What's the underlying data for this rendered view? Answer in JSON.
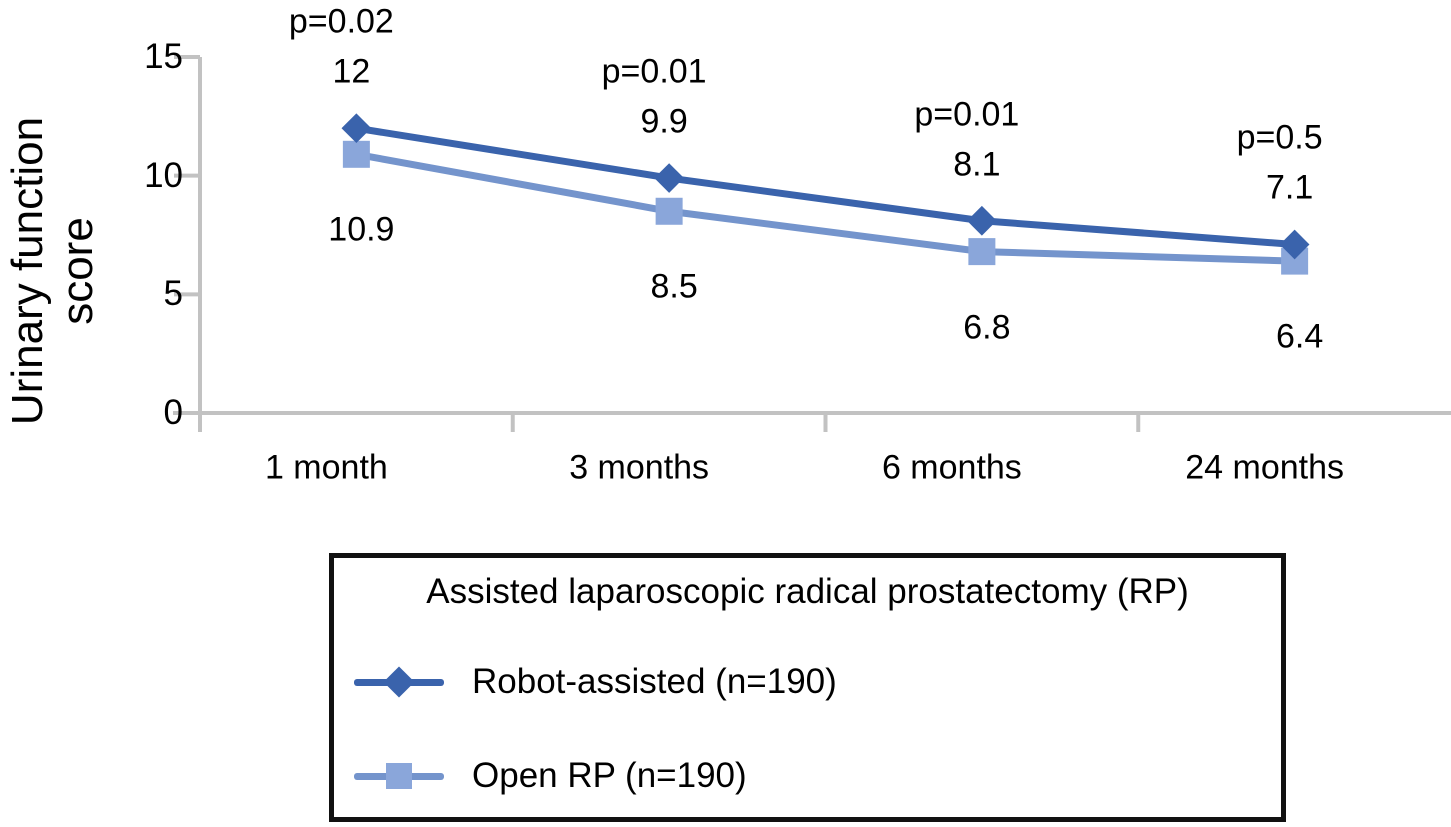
{
  "chart_data": {
    "type": "line",
    "categories": [
      "1 month",
      "3 months",
      "6 months",
      "24 months"
    ],
    "series": [
      {
        "name": "Robot-assisted (n=190)",
        "marker": "diamond",
        "values": [
          12,
          9.9,
          8.1,
          7.1
        ],
        "value_labels": [
          "12",
          "9.9",
          "8.1",
          "7.1"
        ]
      },
      {
        "name": "Open RP (n=190)",
        "marker": "square",
        "values": [
          10.9,
          8.5,
          6.8,
          6.4
        ],
        "value_labels": [
          "10.9",
          "8.5",
          "6.8",
          "6.4"
        ]
      }
    ],
    "p_values": [
      "p=0.02",
      "p=0.01",
      "p=0.01",
      "p=0.5"
    ],
    "ylabel_lines": [
      "Urinary function",
      "score"
    ],
    "yticks": [
      0,
      5,
      10,
      15
    ],
    "ylim": [
      0,
      15
    ],
    "grid": false,
    "legend": {
      "position": "bottom",
      "title": "Assisted laparoscopic radical prostatectomy (RP)"
    },
    "colors": {
      "robot_line": "#3A63AC",
      "robot_marker": "#3A63AC",
      "open_line": "#7494CC",
      "open_marker": "#8AA6DA",
      "axis": "#C2C2C2",
      "text": "#000000",
      "legend_border": "#111111"
    }
  }
}
